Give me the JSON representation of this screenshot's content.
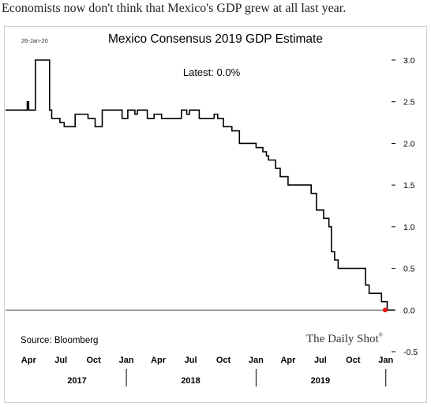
{
  "caption": "Economists now don't think that Mexico's GDP grew at all last year.",
  "chart_data": {
    "type": "line",
    "title": "Mexico Consensus 2019 GDP Estimate",
    "date_stamp": "26-Jan-20",
    "annotation": "Latest:  0.0%",
    "source": "Source: Bloomberg",
    "brand": "The Daily Shot",
    "brand_mark": "®",
    "ylim": [
      -0.5,
      3.0
    ],
    "y_ticks": [
      "3.0",
      "2.5",
      "2.0",
      "1.5",
      "1.0",
      "0.5",
      "0.0",
      "-0.5"
    ],
    "y_tick_values": [
      3.0,
      2.5,
      2.0,
      1.5,
      1.0,
      0.5,
      0.0,
      -0.5
    ],
    "x_axis_range": [
      "2017-01-26",
      "2020-01-26"
    ],
    "x_ticks": [
      {
        "label": "Apr",
        "date": "2017-04-01"
      },
      {
        "label": "Jul",
        "date": "2017-07-01"
      },
      {
        "label": "Oct",
        "date": "2017-10-01"
      },
      {
        "label": "Jan",
        "date": "2018-01-01"
      },
      {
        "label": "Apr",
        "date": "2018-04-01"
      },
      {
        "label": "Jul",
        "date": "2018-07-01"
      },
      {
        "label": "Oct",
        "date": "2018-10-01"
      },
      {
        "label": "Jan",
        "date": "2019-01-01"
      },
      {
        "label": "Apr",
        "date": "2019-04-01"
      },
      {
        "label": "Jul",
        "date": "2019-07-01"
      },
      {
        "label": "Oct",
        "date": "2019-10-01"
      },
      {
        "label": "Jan",
        "date": "2020-01-01"
      }
    ],
    "year_labels": [
      {
        "label": "2017",
        "date": "2017-08-15"
      },
      {
        "label": "2018",
        "date": "2018-07-01"
      },
      {
        "label": "2019",
        "date": "2019-07-01"
      }
    ],
    "year_separators": [
      "2018-01-01",
      "2019-01-01",
      "2020-01-01"
    ],
    "series": [
      {
        "points": [
          [
            "2017-01-26",
            2.4
          ],
          [
            "2017-03-28",
            2.4
          ],
          [
            "2017-03-28",
            2.5
          ],
          [
            "2017-04-01",
            2.5
          ],
          [
            "2017-04-01",
            2.4
          ],
          [
            "2017-04-20",
            2.4
          ],
          [
            "2017-04-20",
            3.0
          ],
          [
            "2017-05-30",
            3.0
          ],
          [
            "2017-05-30",
            2.4
          ],
          [
            "2017-06-05",
            2.4
          ],
          [
            "2017-06-05",
            2.3
          ],
          [
            "2017-06-28",
            2.3
          ],
          [
            "2017-06-28",
            2.25
          ],
          [
            "2017-07-10",
            2.25
          ],
          [
            "2017-07-10",
            2.2
          ],
          [
            "2017-08-10",
            2.2
          ],
          [
            "2017-08-10",
            2.35
          ],
          [
            "2017-09-15",
            2.35
          ],
          [
            "2017-09-15",
            2.3
          ],
          [
            "2017-10-05",
            2.3
          ],
          [
            "2017-10-05",
            2.2
          ],
          [
            "2017-10-25",
            2.2
          ],
          [
            "2017-10-25",
            2.4
          ],
          [
            "2017-12-20",
            2.4
          ],
          [
            "2017-12-20",
            2.3
          ],
          [
            "2018-01-05",
            2.3
          ],
          [
            "2018-01-05",
            2.4
          ],
          [
            "2018-01-25",
            2.4
          ],
          [
            "2018-01-25",
            2.35
          ],
          [
            "2018-02-01",
            2.35
          ],
          [
            "2018-02-01",
            2.4
          ],
          [
            "2018-03-01",
            2.4
          ],
          [
            "2018-03-01",
            2.3
          ],
          [
            "2018-03-20",
            2.3
          ],
          [
            "2018-03-20",
            2.35
          ],
          [
            "2018-04-10",
            2.35
          ],
          [
            "2018-04-10",
            2.3
          ],
          [
            "2018-06-05",
            2.3
          ],
          [
            "2018-06-05",
            2.4
          ],
          [
            "2018-06-20",
            2.4
          ],
          [
            "2018-06-20",
            2.35
          ],
          [
            "2018-06-28",
            2.35
          ],
          [
            "2018-06-28",
            2.4
          ],
          [
            "2018-07-25",
            2.4
          ],
          [
            "2018-07-25",
            2.3
          ],
          [
            "2018-09-05",
            2.3
          ],
          [
            "2018-09-05",
            2.35
          ],
          [
            "2018-09-15",
            2.35
          ],
          [
            "2018-09-15",
            2.3
          ],
          [
            "2018-10-01",
            2.3
          ],
          [
            "2018-10-01",
            2.2
          ],
          [
            "2018-10-25",
            2.2
          ],
          [
            "2018-10-25",
            2.15
          ],
          [
            "2018-11-15",
            2.15
          ],
          [
            "2018-11-15",
            2.0
          ],
          [
            "2019-01-01",
            2.0
          ],
          [
            "2019-01-01",
            1.95
          ],
          [
            "2019-01-20",
            1.95
          ],
          [
            "2019-01-20",
            1.9
          ],
          [
            "2019-01-30",
            1.9
          ],
          [
            "2019-01-30",
            1.85
          ],
          [
            "2019-02-05",
            1.85
          ],
          [
            "2019-02-05",
            1.8
          ],
          [
            "2019-02-25",
            1.8
          ],
          [
            "2019-02-25",
            1.7
          ],
          [
            "2019-03-10",
            1.7
          ],
          [
            "2019-03-10",
            1.6
          ],
          [
            "2019-04-01",
            1.6
          ],
          [
            "2019-04-01",
            1.5
          ],
          [
            "2019-06-05",
            1.5
          ],
          [
            "2019-06-05",
            1.4
          ],
          [
            "2019-06-20",
            1.4
          ],
          [
            "2019-06-20",
            1.2
          ],
          [
            "2019-07-10",
            1.2
          ],
          [
            "2019-07-10",
            1.1
          ],
          [
            "2019-07-25",
            1.1
          ],
          [
            "2019-07-25",
            1.0
          ],
          [
            "2019-08-01",
            1.0
          ],
          [
            "2019-08-01",
            0.7
          ],
          [
            "2019-08-10",
            0.7
          ],
          [
            "2019-08-10",
            0.6
          ],
          [
            "2019-08-20",
            0.6
          ],
          [
            "2019-08-20",
            0.5
          ],
          [
            "2019-11-05",
            0.5
          ],
          [
            "2019-11-05",
            0.3
          ],
          [
            "2019-11-15",
            0.3
          ],
          [
            "2019-11-15",
            0.2
          ],
          [
            "2019-12-20",
            0.2
          ],
          [
            "2019-12-20",
            0.1
          ],
          [
            "2020-01-05",
            0.1
          ],
          [
            "2020-01-05",
            0.0
          ],
          [
            "2020-01-26",
            0.0
          ]
        ],
        "color": "#000000"
      }
    ],
    "latest_point": {
      "date": "2020-01-26",
      "value": 0.0,
      "color": "#e8140f"
    },
    "zero_line": true,
    "grid": false
  }
}
